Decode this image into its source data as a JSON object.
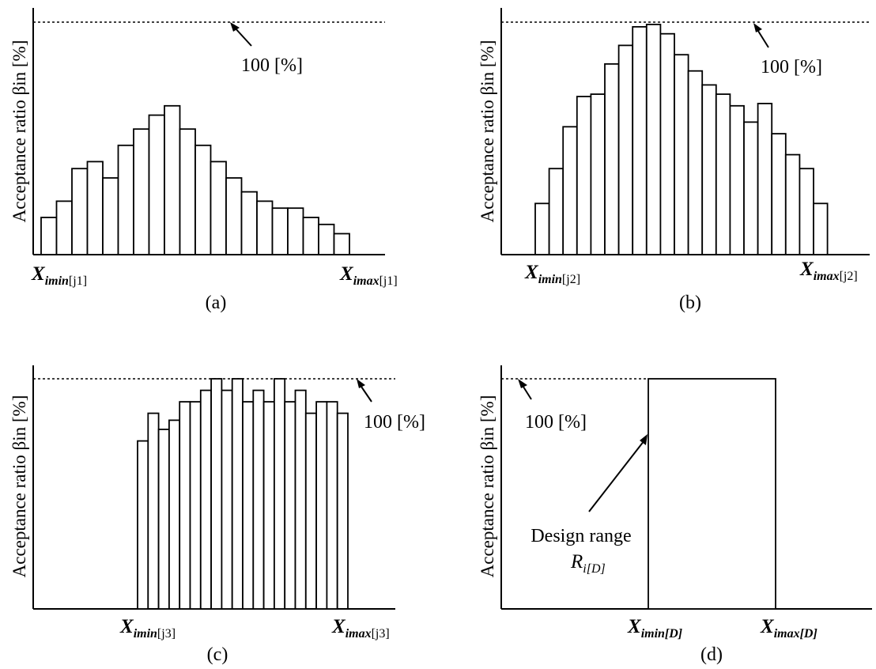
{
  "chart_data": [
    {
      "type": "bar",
      "caption": "(a)",
      "ylabel": "Acceptance ratio βin [%]",
      "reference_label": "100 [%]",
      "reference_value": 100,
      "ylim": [
        0,
        100
      ],
      "xmin_label": "X_imin[j1]",
      "xmax_label": "X_imax[j1]",
      "values": [
        16,
        23,
        37,
        40,
        33,
        47,
        54,
        60,
        64,
        54,
        47,
        40,
        33,
        27,
        23,
        20,
        20,
        16,
        13,
        9
      ]
    },
    {
      "type": "bar",
      "caption": "(b)",
      "ylabel": "Acceptance ratio βin [%]",
      "reference_label": "100 [%]",
      "reference_value": 100,
      "ylim": [
        0,
        100
      ],
      "xmin_label": "X_imin[j2]",
      "xmax_label": "X_imax[j2]",
      "values": [
        22,
        37,
        55,
        68,
        69,
        82,
        90,
        98,
        99,
        95,
        86,
        79,
        73,
        69,
        64,
        57,
        65,
        52,
        43,
        37,
        22
      ]
    },
    {
      "type": "bar",
      "caption": "(c)",
      "ylabel": "Acceptance ratio βin [%]",
      "reference_label": "100 [%]",
      "reference_value": 100,
      "ylim": [
        0,
        100
      ],
      "xmin_label": "X_imin[j3]",
      "xmax_label": "X_imax[j3]",
      "values": [
        73,
        85,
        78,
        82,
        90,
        90,
        95,
        100,
        95,
        100,
        90,
        95,
        90,
        100,
        90,
        95,
        85,
        90,
        90,
        85
      ]
    },
    {
      "type": "bar",
      "caption": "(d)",
      "ylabel": "Acceptance ratio βin [%]",
      "reference_label": "100 [%]",
      "reference_value": 100,
      "ylim": [
        0,
        100
      ],
      "xmin_label": "X_imin[D]",
      "xmax_label": "X_imax[D]",
      "annotation": "Design range",
      "annotation_symbol": "R_i[D]",
      "values": [
        100
      ]
    }
  ]
}
